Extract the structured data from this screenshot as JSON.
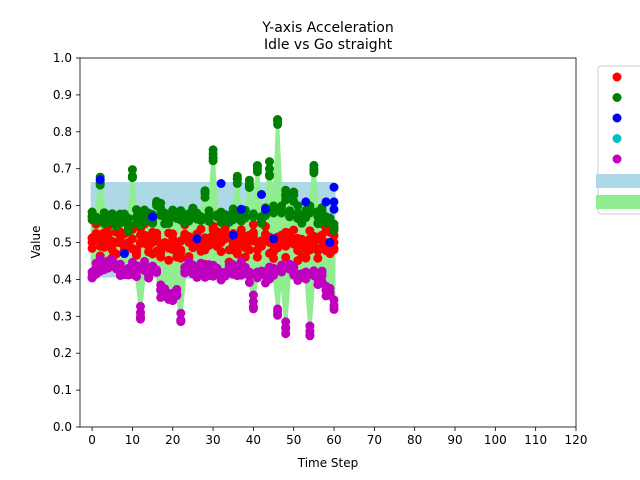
{
  "chart_data": {
    "type": "scatter",
    "title": "Y-axis Acceleration",
    "subtitle": "Idle vs Go straight",
    "xlabel": "Time Step",
    "ylabel": "Value",
    "xlim": [
      -3,
      120
    ],
    "ylim": [
      0.0,
      1.0
    ],
    "xticks": [
      "0",
      "10",
      "20",
      "30",
      "40",
      "50",
      "60",
      "70",
      "80",
      "90",
      "100",
      "110",
      "120"
    ],
    "yticks": [
      "0.0",
      "0.1",
      "0.2",
      "0.3",
      "0.4",
      "0.5",
      "0.6",
      "0.7",
      "0.8",
      "0.9",
      "1.0"
    ],
    "grid": false,
    "legend_position": "outside right, top",
    "legend": [
      {
        "kind": "marker",
        "color": "#ff0000"
      },
      {
        "kind": "marker",
        "color": "#008000"
      },
      {
        "kind": "marker",
        "color": "#0000ff"
      },
      {
        "kind": "marker",
        "color": "#00bfbf"
      },
      {
        "kind": "marker",
        "color": "#bf00bf"
      },
      {
        "kind": "patch",
        "color": "#add8e6"
      },
      {
        "kind": "patch",
        "color": "#90ee90"
      }
    ],
    "bands": [
      {
        "color": "#add8e6",
        "x": [
          0,
          60
        ],
        "lower": [
          0.41,
          0.4
        ],
        "upper": [
          0.66,
          0.66
        ],
        "note": "approximate envelope"
      },
      {
        "color": "#90ee90",
        "x": [
          0,
          1,
          2,
          3,
          4,
          5,
          6,
          7,
          8,
          9,
          10,
          11,
          12,
          13,
          14,
          15,
          16,
          17,
          18,
          19,
          20,
          21,
          22,
          23,
          24,
          25,
          26,
          27,
          28,
          29,
          30,
          31,
          32,
          33,
          34,
          35,
          36,
          37,
          38,
          39,
          40,
          41,
          42,
          43,
          44,
          45,
          46,
          47,
          48,
          49,
          50,
          51,
          52,
          53,
          54,
          55,
          56,
          57,
          58,
          59,
          60
        ],
        "lower": [
          0.41,
          0.42,
          0.43,
          0.42,
          0.44,
          0.43,
          0.43,
          0.42,
          0.41,
          0.42,
          0.42,
          0.41,
          0.31,
          0.42,
          0.41,
          0.42,
          0.41,
          0.37,
          0.36,
          0.36,
          0.35,
          0.36,
          0.29,
          0.41,
          0.42,
          0.42,
          0.41,
          0.42,
          0.41,
          0.42,
          0.41,
          0.42,
          0.4,
          0.4,
          0.41,
          0.42,
          0.41,
          0.42,
          0.41,
          0.4,
          0.34,
          0.41,
          0.41,
          0.4,
          0.41,
          0.42,
          0.32,
          0.41,
          0.27,
          0.42,
          0.41,
          0.4,
          0.4,
          0.41,
          0.26,
          0.4,
          0.39,
          0.4,
          0.37,
          0.36,
          0.33
        ],
        "upper": [
          0.57,
          0.58,
          0.67,
          0.58,
          0.57,
          0.58,
          0.57,
          0.56,
          0.57,
          0.56,
          0.68,
          0.57,
          0.57,
          0.58,
          0.57,
          0.57,
          0.6,
          0.59,
          0.58,
          0.57,
          0.58,
          0.59,
          0.58,
          0.57,
          0.58,
          0.59,
          0.59,
          0.58,
          0.64,
          0.58,
          0.74,
          0.58,
          0.58,
          0.58,
          0.58,
          0.59,
          0.66,
          0.58,
          0.58,
          0.65,
          0.58,
          0.7,
          0.58,
          0.59,
          0.71,
          0.59,
          0.83,
          0.59,
          0.64,
          0.58,
          0.63,
          0.59,
          0.58,
          0.58,
          0.59,
          0.71,
          0.58,
          0.59,
          0.58,
          0.57,
          0.56
        ]
      }
    ],
    "series": [
      {
        "color": "#ff0000",
        "x": [
          0,
          1,
          2,
          3,
          4,
          5,
          6,
          7,
          8,
          9,
          10,
          11,
          12,
          13,
          14,
          15,
          16,
          17,
          18,
          19,
          20,
          21,
          22,
          23,
          24,
          25,
          26,
          27,
          28,
          29,
          30,
          31,
          32,
          33,
          34,
          35,
          36,
          37,
          38,
          39,
          40,
          41,
          42,
          43,
          44,
          45,
          46,
          47,
          48,
          49,
          50,
          51,
          52,
          53,
          54,
          55,
          56,
          57,
          58,
          59,
          60
        ],
        "y": [
          0.5,
          0.51,
          0.49,
          0.5,
          0.52,
          0.48,
          0.5,
          0.51,
          0.49,
          0.5,
          0.51,
          0.48,
          0.5,
          0.52,
          0.49,
          0.5,
          0.51,
          0.48,
          0.5,
          0.49,
          0.51,
          0.5,
          0.48,
          0.52,
          0.5,
          0.49,
          0.51,
          0.5,
          0.48,
          0.5,
          0.52,
          0.49,
          0.5,
          0.51,
          0.48,
          0.5,
          0.49,
          0.51,
          0.5,
          0.48,
          0.52,
          0.5,
          0.49,
          0.51,
          0.5,
          0.48,
          0.5,
          0.52,
          0.49,
          0.5,
          0.51,
          0.48,
          0.5,
          0.49,
          0.51,
          0.5,
          0.48,
          0.52,
          0.5,
          0.49,
          0.5
        ],
        "spread": 0.04
      },
      {
        "color": "#008000",
        "x": [
          0,
          1,
          2,
          3,
          4,
          5,
          6,
          7,
          8,
          9,
          10,
          11,
          12,
          13,
          14,
          15,
          16,
          17,
          18,
          19,
          20,
          21,
          22,
          23,
          24,
          25,
          26,
          27,
          28,
          29,
          30,
          31,
          32,
          33,
          34,
          35,
          36,
          37,
          38,
          39,
          40,
          41,
          42,
          43,
          44,
          45,
          46,
          47,
          48,
          49,
          50,
          51,
          52,
          53,
          54,
          55,
          56,
          57,
          58,
          59,
          60
        ],
        "y": [
          0.57,
          0.56,
          0.67,
          0.57,
          0.56,
          0.57,
          0.55,
          0.56,
          0.56,
          0.55,
          0.68,
          0.57,
          0.56,
          0.57,
          0.56,
          0.56,
          0.6,
          0.59,
          0.57,
          0.56,
          0.57,
          0.58,
          0.57,
          0.56,
          0.57,
          0.58,
          0.58,
          0.57,
          0.64,
          0.57,
          0.74,
          0.57,
          0.57,
          0.57,
          0.57,
          0.58,
          0.66,
          0.57,
          0.57,
          0.65,
          0.57,
          0.7,
          0.57,
          0.58,
          0.7,
          0.58,
          0.82,
          0.58,
          0.63,
          0.57,
          0.63,
          0.58,
          0.57,
          0.57,
          0.58,
          0.7,
          0.57,
          0.58,
          0.57,
          0.56,
          0.55
        ],
        "spread": 0.02
      },
      {
        "color": "#0000ff",
        "x": [
          2,
          8,
          15,
          26,
          32,
          35,
          37,
          42,
          43,
          45,
          53,
          58,
          59,
          60,
          60,
          60
        ],
        "y": [
          0.67,
          0.47,
          0.57,
          0.51,
          0.66,
          0.52,
          0.59,
          0.63,
          0.59,
          0.51,
          0.61,
          0.61,
          0.5,
          0.65,
          0.61,
          0.59
        ]
      },
      {
        "color": "#00bfbf",
        "x": [],
        "y": []
      },
      {
        "color": "#bf00bf",
        "x": [
          0,
          1,
          2,
          3,
          4,
          5,
          6,
          7,
          8,
          9,
          10,
          11,
          12,
          13,
          14,
          15,
          16,
          17,
          18,
          19,
          20,
          21,
          22,
          23,
          24,
          25,
          26,
          27,
          28,
          29,
          30,
          31,
          32,
          33,
          34,
          35,
          36,
          37,
          38,
          39,
          40,
          41,
          42,
          43,
          44,
          45,
          46,
          47,
          48,
          49,
          50,
          51,
          52,
          53,
          54,
          55,
          56,
          57,
          58,
          59,
          60
        ],
        "y": [
          0.42,
          0.43,
          0.44,
          0.43,
          0.45,
          0.44,
          0.44,
          0.43,
          0.42,
          0.43,
          0.43,
          0.42,
          0.31,
          0.43,
          0.42,
          0.43,
          0.42,
          0.37,
          0.36,
          0.36,
          0.35,
          0.36,
          0.29,
          0.42,
          0.43,
          0.43,
          0.42,
          0.43,
          0.42,
          0.43,
          0.42,
          0.43,
          0.41,
          0.41,
          0.42,
          0.43,
          0.42,
          0.43,
          0.42,
          0.41,
          0.34,
          0.42,
          0.42,
          0.41,
          0.42,
          0.43,
          0.32,
          0.42,
          0.27,
          0.43,
          0.42,
          0.41,
          0.41,
          0.42,
          0.26,
          0.41,
          0.4,
          0.41,
          0.37,
          0.36,
          0.33
        ],
        "spread": 0.02
      }
    ]
  }
}
